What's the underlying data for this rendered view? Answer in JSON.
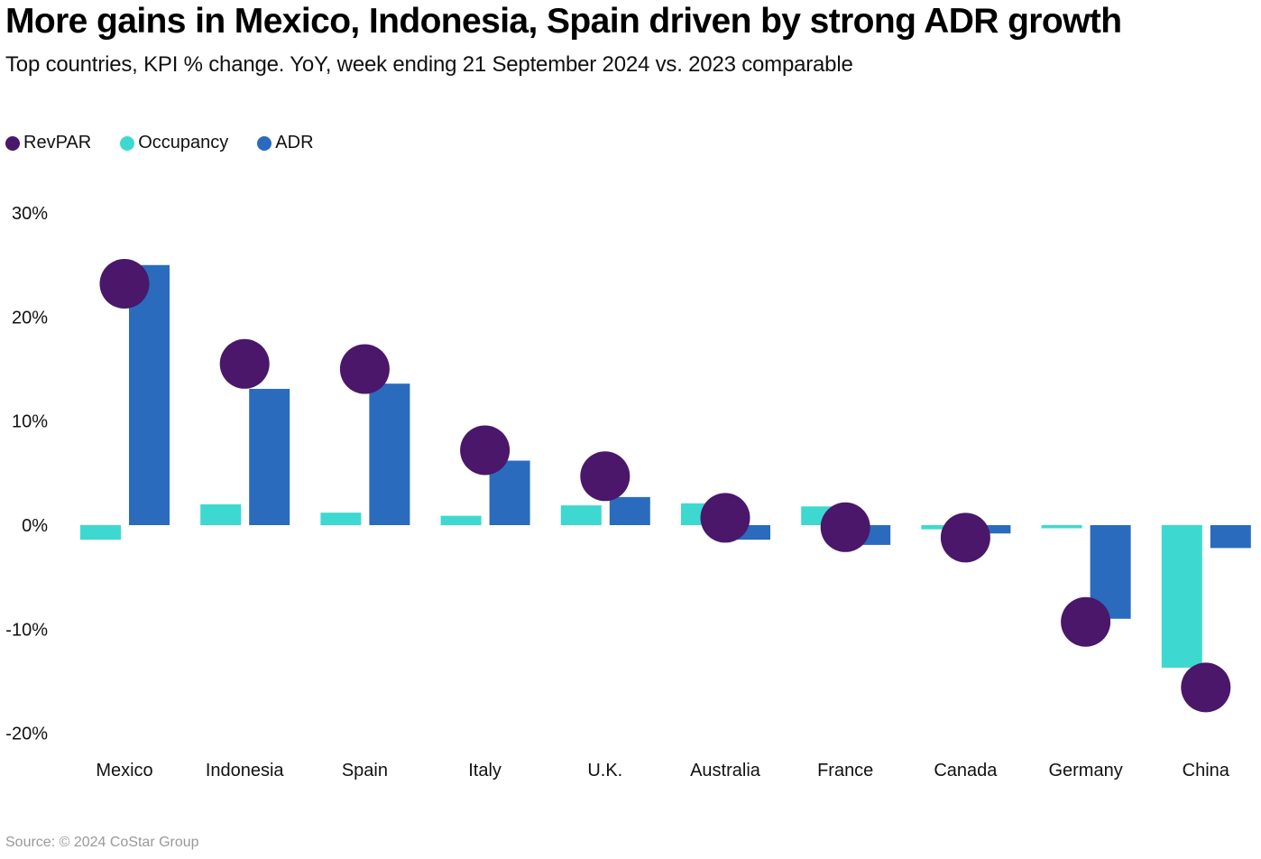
{
  "title": "More gains in Mexico, Indonesia, Spain driven by strong ADR growth",
  "subtitle": "Top countries, KPI % change. YoY, week ending 21 September 2024 vs. 2023 comparable",
  "source": "Source: © 2024 CoStar Group",
  "legend": [
    {
      "label": "RevPAR",
      "color": "#4a176b"
    },
    {
      "label": "Occupancy",
      "color": "#3dd9d0"
    },
    {
      "label": "ADR",
      "color": "#2a6bbd"
    }
  ],
  "chart_data": {
    "type": "bar",
    "title": "More gains in Mexico, Indonesia, Spain driven by strong ADR growth",
    "subtitle": "Top countries, KPI % change. YoY, week ending 21 September 2024 vs. 2023 comparable",
    "xlabel": "",
    "ylabel": "",
    "ylim": [
      -20,
      30
    ],
    "yticks": [
      30,
      20,
      10,
      0,
      -10,
      -20
    ],
    "ytick_labels": [
      "30%",
      "20%",
      "10%",
      "0%",
      "-10%",
      "-20%"
    ],
    "grid": false,
    "legend_position": "top-left",
    "categories": [
      "Mexico",
      "Indonesia",
      "Spain",
      "Italy",
      "U.K.",
      "Australia",
      "France",
      "Canada",
      "Germany",
      "China"
    ],
    "series": [
      {
        "name": "Occupancy",
        "type": "bar",
        "color": "#3dd9d0",
        "values": [
          -1.4,
          2.0,
          1.2,
          0.9,
          1.9,
          2.1,
          1.8,
          -0.4,
          -0.3,
          -13.7
        ]
      },
      {
        "name": "ADR",
        "type": "bar",
        "color": "#2a6bbd",
        "values": [
          25.0,
          13.1,
          13.6,
          6.2,
          2.7,
          -1.4,
          -1.9,
          -0.8,
          -9.0,
          -2.2
        ]
      },
      {
        "name": "RevPAR",
        "type": "dot",
        "color": "#4a176b",
        "values": [
          23.2,
          15.5,
          15.0,
          7.2,
          4.7,
          0.7,
          -0.2,
          -1.2,
          -9.3,
          -15.6
        ]
      }
    ]
  }
}
